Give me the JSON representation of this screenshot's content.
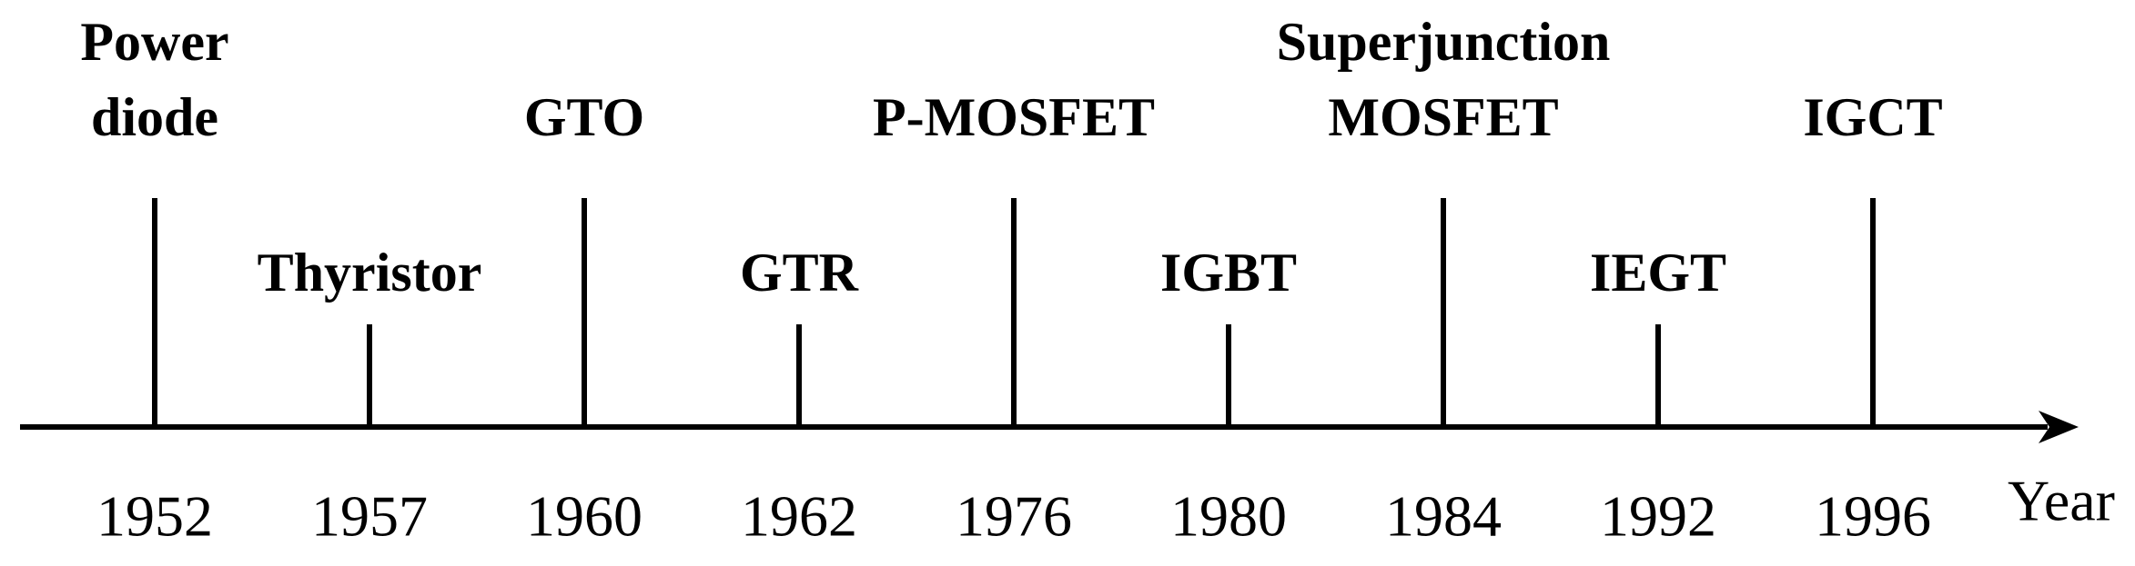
{
  "axis_label": "Year",
  "events": [
    {
      "label": [
        "Power",
        "diode"
      ],
      "year": "1952"
    },
    {
      "label": [
        "Thyristor"
      ],
      "year": "1957"
    },
    {
      "label": [
        "GTO"
      ],
      "year": "1960"
    },
    {
      "label": [
        "GTR"
      ],
      "year": "1962"
    },
    {
      "label": [
        "P-MOSFET"
      ],
      "year": "1976"
    },
    {
      "label": [
        "IGBT"
      ],
      "year": "1980"
    },
    {
      "label": [
        "Superjunction",
        "MOSFET"
      ],
      "year": "1984"
    },
    {
      "label": [
        "IEGT"
      ],
      "year": "1992"
    },
    {
      "label": [
        "IGCT"
      ],
      "year": "1996"
    }
  ]
}
